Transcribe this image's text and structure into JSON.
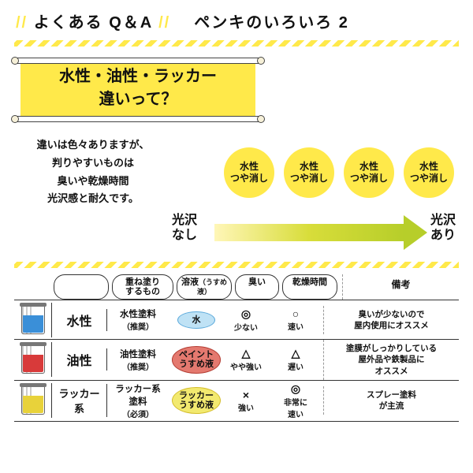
{
  "header": {
    "left": "よくある Q＆A",
    "right": "ペンキのいろいろ 2"
  },
  "scroll": {
    "l1": "水性・油性・ラッカー",
    "l2": "違いって？"
  },
  "mid": {
    "t1": "違いは色々ありますが、",
    "t2": "判りやすいものは",
    "t3": "臭いや乾燥時間",
    "t4": "光沢感と耐久です。"
  },
  "circles": [
    {
      "l1": "水性",
      "l2": "つや消し"
    },
    {
      "l1": "水性",
      "l2": "つや消し"
    },
    {
      "l1": "水性",
      "l2": "つや消し"
    },
    {
      "l1": "水性",
      "l2": "つや消し"
    }
  ],
  "gloss": {
    "left1": "光沢",
    "left2": "なし",
    "right1": "光沢",
    "right2": "あり"
  },
  "thead": {
    "c2": "重ね塗り\nするもの",
    "c3": "溶液",
    "c3s": "（うすめ液）",
    "c4": "臭い",
    "c5": "乾燥時間",
    "c6": "備考"
  },
  "rows": [
    {
      "jar": "#3a8fd8",
      "name": "水性",
      "overcoat": "水性塗料",
      "overcoat_s": "（推奨）",
      "sol": "水",
      "sol_bg": "#bfe2f5",
      "sol_bd": "#5aa9db",
      "smell": "◎",
      "smell_s": "少ない",
      "dry": "○",
      "dry_s": "速い",
      "note": "臭いが少ないので\n屋内使用にオススメ"
    },
    {
      "jar": "#d83a3a",
      "name": "油性",
      "overcoat": "油性塗料",
      "overcoat_s": "（推奨）",
      "sol": "ペイント\nうすめ液",
      "sol_bg": "#e4796f",
      "sol_bd": "#b43d33",
      "smell": "△",
      "smell_s": "やや強い",
      "dry": "△",
      "dry_s": "遅い",
      "note": "塗膜がしっかりしている\n屋外品や鉄製品に\nオススメ"
    },
    {
      "jar": "#e8d23a",
      "name": "ラッカー\n系",
      "overcoat": "ラッカー系\n塗料",
      "overcoat_s": "（必須）",
      "sol": "ラッカー\nうすめ液",
      "sol_bg": "#f2e96f",
      "sol_bd": "#d4bd2a",
      "smell": "×",
      "smell_s": "強い",
      "dry": "◎",
      "dry_s": "非常に\n速い",
      "note": "スプレー塗料\nが主流"
    }
  ],
  "colors": {
    "yellow": "#ffe94a"
  }
}
